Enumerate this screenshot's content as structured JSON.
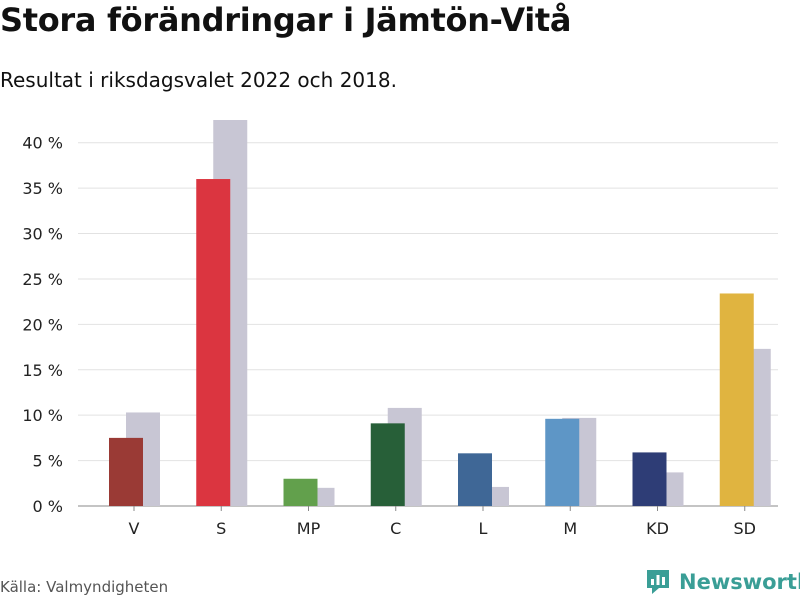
{
  "header": {
    "title": "Stora förändringar i Jämtön-Vitå",
    "subtitle": "Resultat i riksdagsvalet 2022 och 2018."
  },
  "footer": {
    "source": "Källa: Valmyndigheten",
    "brand": "Newsworthy"
  },
  "colors": {
    "previous": "#c8c6d4",
    "grid": "#e2e2e2",
    "brand": "#3a9e96"
  },
  "chart_data": {
    "type": "bar",
    "title": "Stora förändringar i Jämtön-Vitå",
    "subtitle": "Resultat i riksdagsvalet 2022 och 2018.",
    "xlabel": "",
    "ylabel": "",
    "ylim": [
      0,
      42.5
    ],
    "yticks": [
      0,
      5,
      10,
      15,
      20,
      25,
      30,
      35,
      40
    ],
    "ytick_labels": [
      "0 %",
      "5 %",
      "10 %",
      "15 %",
      "20 %",
      "25 %",
      "30 %",
      "35 %",
      "40 %"
    ],
    "grid": true,
    "categories": [
      "V",
      "S",
      "MP",
      "C",
      "L",
      "M",
      "KD",
      "SD"
    ],
    "series": [
      {
        "name": "2022",
        "values": [
          7.5,
          36.0,
          3.0,
          9.1,
          5.8,
          9.6,
          5.9,
          23.4
        ],
        "colors": [
          "#9a3a35",
          "#db3540",
          "#62a04c",
          "#275f38",
          "#3f6796",
          "#5e96c6",
          "#2e3d76",
          "#e0b440"
        ]
      },
      {
        "name": "2018",
        "values": [
          10.3,
          42.8,
          2.0,
          10.8,
          2.1,
          9.7,
          3.7,
          17.3
        ],
        "color": "#c8c6d4"
      }
    ]
  }
}
